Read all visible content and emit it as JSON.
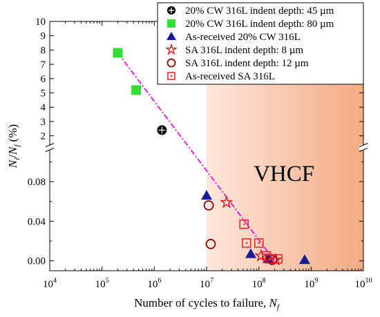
{
  "chart_data": {
    "type": "scatter",
    "title": "",
    "xlabel": "Number of cycles to failure, N_f",
    "xlabel_main": "Number of cycles to failure, ",
    "xlabel_var": "N",
    "xlabel_sub": "f",
    "ylabel": "N_i/N_f (%)",
    "ylabel_parts": {
      "v1": "N",
      "s1": "i",
      "mid": "/",
      "v2": "N",
      "s2": "f",
      "unit": " (%)"
    },
    "x_scale": "log",
    "xlim": [
      10000,
      10000000000
    ],
    "x_ticks": [
      {
        "value": 10000,
        "base": "10",
        "exp": "4"
      },
      {
        "value": 100000,
        "base": "10",
        "exp": "5"
      },
      {
        "value": 1000000,
        "base": "10",
        "exp": "6"
      },
      {
        "value": 10000000,
        "base": "10",
        "exp": "7"
      },
      {
        "value": 100000000,
        "base": "10",
        "exp": "8"
      },
      {
        "value": 1000000000,
        "base": "10",
        "exp": "9"
      },
      {
        "value": 10000000000,
        "base": "10",
        "exp": "10"
      }
    ],
    "y_upper": {
      "range": [
        1.5,
        10
      ],
      "ticks": [
        "2",
        "3",
        "4",
        "5",
        "6",
        "7",
        "8",
        "9",
        "10"
      ]
    },
    "y_lower": {
      "range": [
        -0.01,
        0.11
      ],
      "ticks": [
        "0.00",
        "0.04",
        "0.08"
      ]
    },
    "axis_break": "y",
    "region": {
      "label": "VHCF",
      "x_start": 10000000,
      "x_end": 10000000000
    },
    "trend_line": {
      "style": "dash-dot",
      "color": "#e020e0",
      "from": [
        200000,
        7.8
      ],
      "to": [
        200000000,
        0.0
      ]
    },
    "legend_position": "top-right",
    "series": [
      {
        "name": "20% CW 316L indent depth: 45 µm",
        "marker": "crossed-circle",
        "color": "#000000",
        "points": [
          {
            "x": 1400000,
            "y": 2.4
          }
        ]
      },
      {
        "name": "20% CW 316L indent depth: 80 µm",
        "marker": "filled-square",
        "color": "#33dd33",
        "points": [
          {
            "x": 200000,
            "y": 7.8
          },
          {
            "x": 450000,
            "y": 5.2
          }
        ]
      },
      {
        "name": "As-received 20% CW 316L",
        "marker": "filled-triangle",
        "color": "#1a1a99",
        "points": [
          {
            "x": 10000000,
            "y": 0.066
          },
          {
            "x": 70000000,
            "y": 0.007
          },
          {
            "x": 150000000,
            "y": 0.002
          },
          {
            "x": 750000000,
            "y": 0.001
          }
        ]
      },
      {
        "name": "SA 316L  indent depth: 8 µm",
        "marker": "open-star",
        "color": "#e02020",
        "points": [
          {
            "x": 24000000,
            "y": 0.059
          },
          {
            "x": 110000000,
            "y": 0.005
          },
          {
            "x": 210000000,
            "y": 0.001
          }
        ]
      },
      {
        "name": "SA 316L  indent depth: 12 µm",
        "marker": "open-circle",
        "color": "#8b0000",
        "points": [
          {
            "x": 11000000,
            "y": 0.056
          },
          {
            "x": 12000000,
            "y": 0.017
          },
          {
            "x": 180000000,
            "y": 0.001
          }
        ]
      },
      {
        "name": "As-received SA 316L",
        "marker": "open-square",
        "color": "#e02020",
        "points": [
          {
            "x": 52000000,
            "y": 0.037
          },
          {
            "x": 58000000,
            "y": 0.018
          },
          {
            "x": 100000000,
            "y": 0.018
          },
          {
            "x": 140000000,
            "y": 0.005
          },
          {
            "x": 160000000,
            "y": 0.002
          },
          {
            "x": 230000000,
            "y": 0.002
          }
        ]
      }
    ]
  }
}
